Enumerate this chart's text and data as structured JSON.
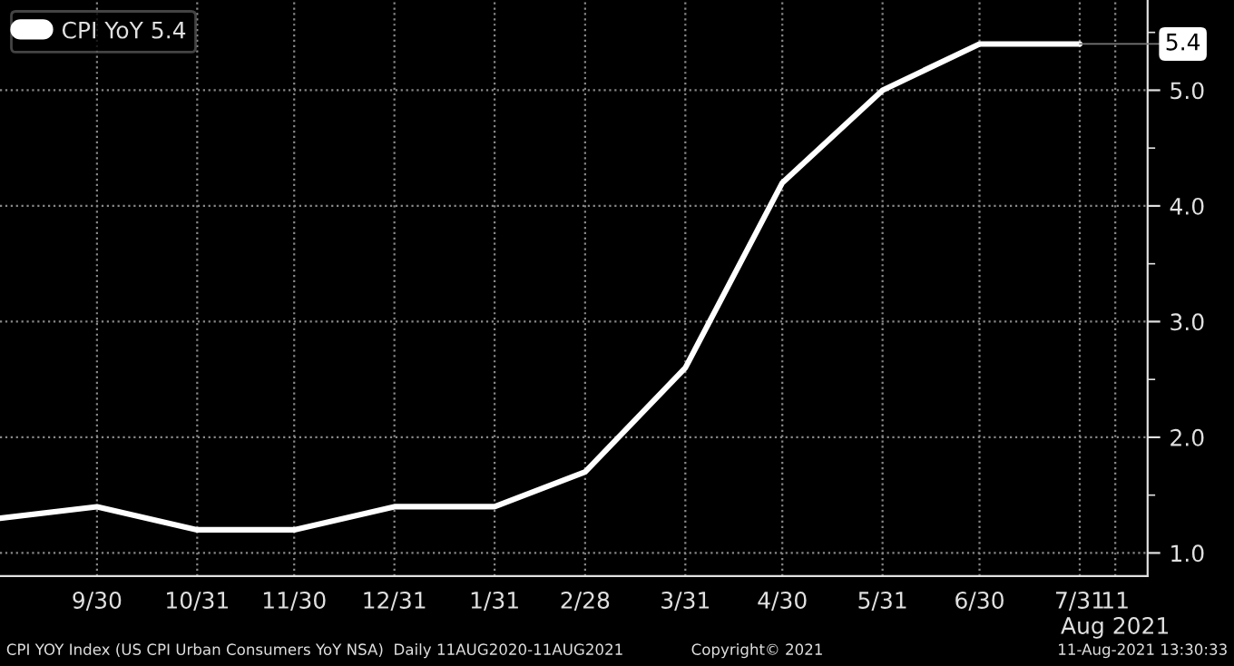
{
  "chart_data": {
    "type": "line",
    "x": [
      "2020-08-31",
      "2020-09-30",
      "2020-10-31",
      "2020-11-30",
      "2020-12-31",
      "2021-01-31",
      "2021-02-28",
      "2021-03-31",
      "2021-04-30",
      "2021-05-31",
      "2021-06-30",
      "2021-07-31"
    ],
    "series": [
      {
        "name": "CPI YoY 5.4",
        "color": "#ffffff",
        "values": [
          1.3,
          1.4,
          1.2,
          1.2,
          1.4,
          1.4,
          1.7,
          2.6,
          4.2,
          5.0,
          5.4,
          5.4
        ]
      }
    ],
    "xlim": [
      "2020-08-31",
      "2021-08-21"
    ],
    "xticks": [
      {
        "value": "2020-09-30",
        "label": "9/30"
      },
      {
        "value": "2020-10-31",
        "label": "10/31"
      },
      {
        "value": "2020-11-30",
        "label": "11/30"
      },
      {
        "value": "2020-12-31",
        "label": "12/31"
      },
      {
        "value": "2021-01-31",
        "label": "1/31"
      },
      {
        "value": "2021-02-28",
        "label": "2/28"
      },
      {
        "value": "2021-03-31",
        "label": "3/31"
      },
      {
        "value": "2021-04-30",
        "label": "4/30"
      },
      {
        "value": "2021-05-31",
        "label": "5/31"
      },
      {
        "value": "2021-06-30",
        "label": "6/30"
      },
      {
        "value": "2021-07-31",
        "label": "7/31"
      },
      {
        "value": "2021-08-11",
        "label": "11\nAug 2021"
      }
    ],
    "ylim": [
      0.8,
      5.78
    ],
    "yticks": [
      {
        "value": 1.0,
        "label": "1.0"
      },
      {
        "value": 1.5,
        "label": null
      },
      {
        "value": 2.0,
        "label": "2.0"
      },
      {
        "value": 2.5,
        "label": null
      },
      {
        "value": 3.0,
        "label": "3.0"
      },
      {
        "value": 3.5,
        "label": null
      },
      {
        "value": 4.0,
        "label": "4.0"
      },
      {
        "value": 4.5,
        "label": null
      },
      {
        "value": 5.0,
        "label": "5.0"
      },
      {
        "value": 5.5,
        "label": null
      }
    ],
    "grid": true,
    "legend": "top left",
    "line_style": "solid",
    "marker": "none",
    "annotations": [
      {
        "text": "5.4",
        "x": "2021-07-31",
        "y": 5.4
      },
      "CPI YOY Index (US CPI Urban Consumers YoY NSA)  Daily 11AUG2020-11AUG2021",
      "Copyright© 2021",
      "11-Aug-2021 13:30:33"
    ]
  }
}
